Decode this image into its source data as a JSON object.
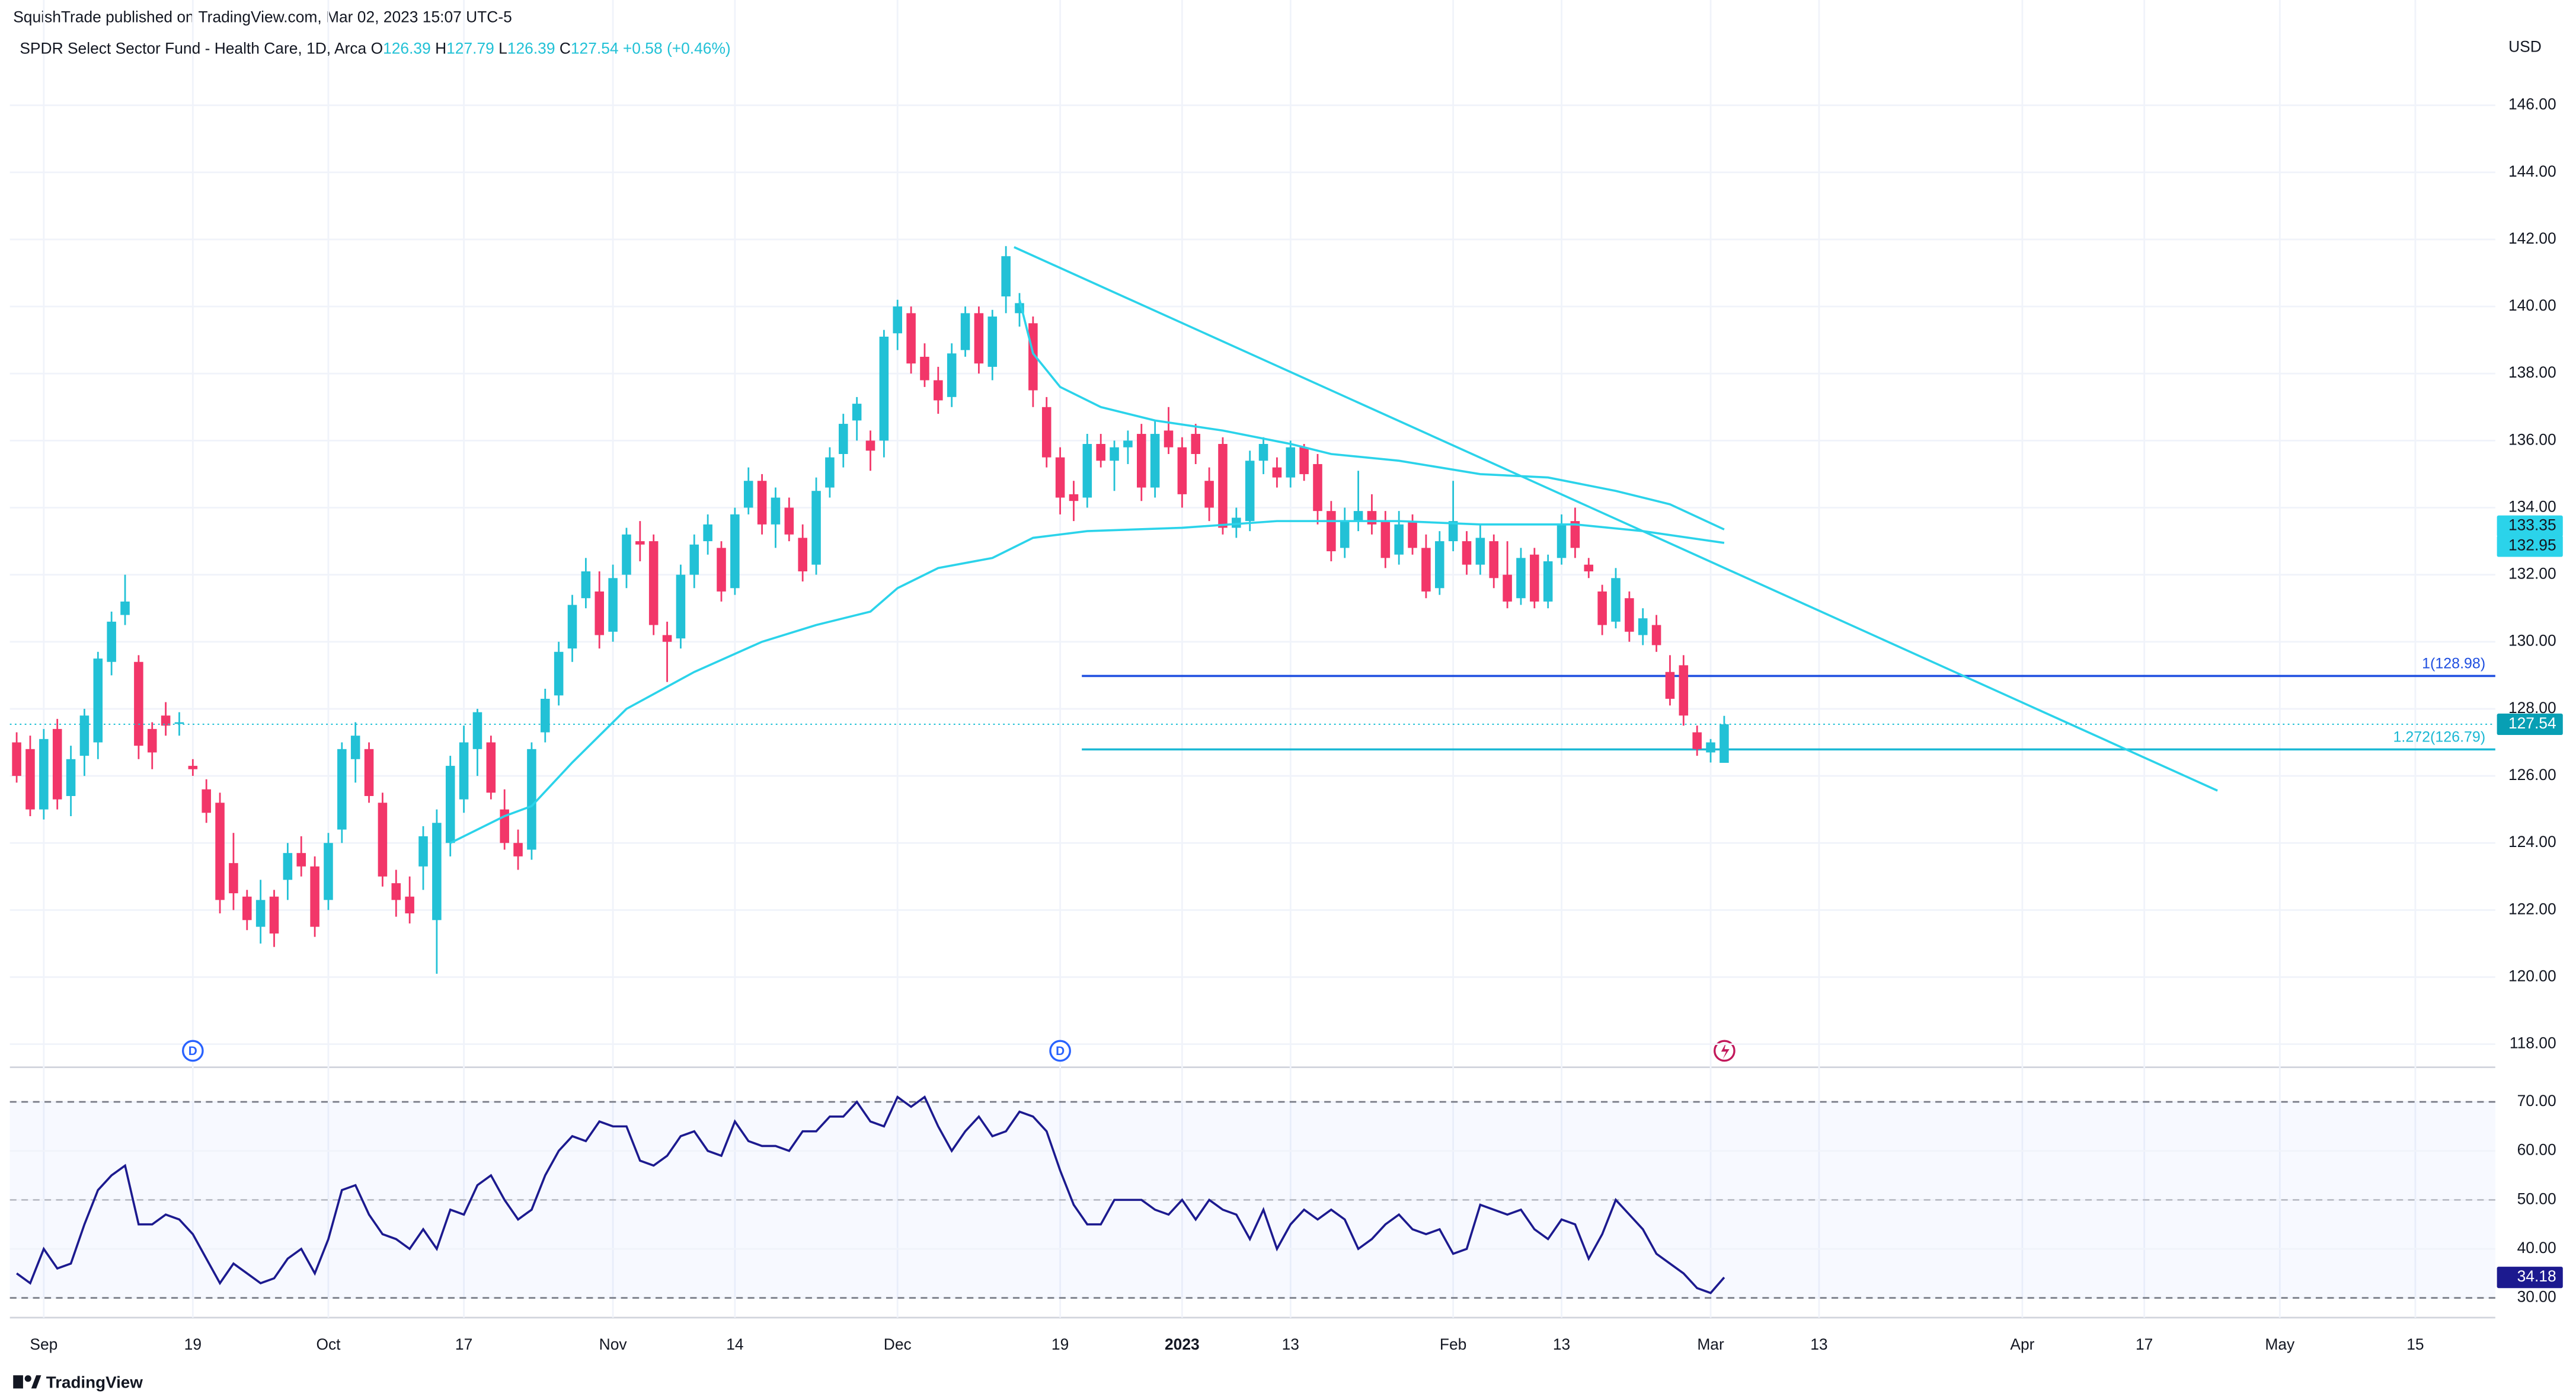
{
  "header": {
    "publisher": "SquishTrade published on TradingView.com, Mar 02, 2023 15:07 UTC-5",
    "brand": "TradingView"
  },
  "chart_data": {
    "type": "candlestick",
    "title": "SPDR Select Sector Fund - Health Care, 1D, Arca",
    "ohlc_labels": [
      "O",
      "H",
      "L",
      "C"
    ],
    "change": "+0.58 (+0.46%)",
    "currency": "USD",
    "up_color": "#22c1d6",
    "down_color": "#f23669",
    "grid": true,
    "candles": [
      [
        127.0,
        127.3,
        125.8,
        126.0
      ],
      [
        126.8,
        127.2,
        124.8,
        125.0
      ],
      [
        125.0,
        127.4,
        124.7,
        127.1
      ],
      [
        127.4,
        127.7,
        125.0,
        125.3
      ],
      [
        125.4,
        126.9,
        124.8,
        126.5
      ],
      [
        126.6,
        128.0,
        126.0,
        127.8
      ],
      [
        127.0,
        129.7,
        126.5,
        129.5
      ],
      [
        129.4,
        130.9,
        129.0,
        130.6
      ],
      [
        130.8,
        132.0,
        130.5,
        131.2
      ],
      [
        129.4,
        129.6,
        126.5,
        126.9
      ],
      [
        127.4,
        127.6,
        126.2,
        126.7
      ],
      [
        127.8,
        128.2,
        127.2,
        127.5
      ],
      [
        127.6,
        127.9,
        127.2,
        127.6
      ],
      [
        126.3,
        126.5,
        126.0,
        126.2
      ],
      [
        125.6,
        125.9,
        124.6,
        124.9
      ],
      [
        125.2,
        125.5,
        121.9,
        122.3
      ],
      [
        123.4,
        124.3,
        122.0,
        122.5
      ],
      [
        122.4,
        122.6,
        121.4,
        121.7
      ],
      [
        121.5,
        122.9,
        121.0,
        122.3
      ],
      [
        122.4,
        122.6,
        120.9,
        121.3
      ],
      [
        122.9,
        124.0,
        122.3,
        123.7
      ],
      [
        123.7,
        124.2,
        123.0,
        123.3
      ],
      [
        123.3,
        123.6,
        121.2,
        121.5
      ],
      [
        122.3,
        124.3,
        122.0,
        124.0
      ],
      [
        124.4,
        127.0,
        124.0,
        126.8
      ],
      [
        126.5,
        127.6,
        125.8,
        127.2
      ],
      [
        126.8,
        127.0,
        125.2,
        125.4
      ],
      [
        125.2,
        125.5,
        122.7,
        123.0
      ],
      [
        122.8,
        123.2,
        121.8,
        122.3
      ],
      [
        122.4,
        123.0,
        121.6,
        121.9
      ],
      [
        123.3,
        124.5,
        122.6,
        124.2
      ],
      [
        121.7,
        125.0,
        120.1,
        124.6
      ],
      [
        124.0,
        126.6,
        123.6,
        126.3
      ],
      [
        125.3,
        127.5,
        124.9,
        127.0
      ],
      [
        126.8,
        128.0,
        126.0,
        127.9
      ],
      [
        127.0,
        127.2,
        125.3,
        125.5
      ],
      [
        125.0,
        125.6,
        123.8,
        124.0
      ],
      [
        124.0,
        124.4,
        123.2,
        123.6
      ],
      [
        123.8,
        127.0,
        123.5,
        126.8
      ],
      [
        127.3,
        128.6,
        127.0,
        128.3
      ],
      [
        128.4,
        130.0,
        128.1,
        129.7
      ],
      [
        129.8,
        131.4,
        129.4,
        131.1
      ],
      [
        131.3,
        132.5,
        131.0,
        132.1
      ],
      [
        131.5,
        132.1,
        129.8,
        130.2
      ],
      [
        130.3,
        132.3,
        130.0,
        131.9
      ],
      [
        132.0,
        133.4,
        131.6,
        133.2
      ],
      [
        133.0,
        133.6,
        132.4,
        132.9
      ],
      [
        133.0,
        133.2,
        130.2,
        130.5
      ],
      [
        130.2,
        130.6,
        128.8,
        130.0
      ],
      [
        130.1,
        132.3,
        129.8,
        132.0
      ],
      [
        132.0,
        133.2,
        131.6,
        132.9
      ],
      [
        133.0,
        133.8,
        132.6,
        133.5
      ],
      [
        132.8,
        133.0,
        131.2,
        131.5
      ],
      [
        131.6,
        134.0,
        131.4,
        133.8
      ],
      [
        134.0,
        135.2,
        133.8,
        134.8
      ],
      [
        134.8,
        135.0,
        133.2,
        133.5
      ],
      [
        133.5,
        134.6,
        132.8,
        134.3
      ],
      [
        134.0,
        134.3,
        133.0,
        133.2
      ],
      [
        133.1,
        133.5,
        131.8,
        132.1
      ],
      [
        132.3,
        134.9,
        132.0,
        134.5
      ],
      [
        134.6,
        135.8,
        134.3,
        135.5
      ],
      [
        135.6,
        136.8,
        135.2,
        136.5
      ],
      [
        136.6,
        137.3,
        136.0,
        137.1
      ],
      [
        136.0,
        136.3,
        135.1,
        135.7
      ],
      [
        136.0,
        139.3,
        135.5,
        139.1
      ],
      [
        139.2,
        140.2,
        138.7,
        140.0
      ],
      [
        139.8,
        140.0,
        138.0,
        138.3
      ],
      [
        138.5,
        138.9,
        137.6,
        137.8
      ],
      [
        137.8,
        138.2,
        136.8,
        137.2
      ],
      [
        137.3,
        138.9,
        137.0,
        138.6
      ],
      [
        138.7,
        140.0,
        138.5,
        139.8
      ],
      [
        139.8,
        140.0,
        138.0,
        138.3
      ],
      [
        138.2,
        139.9,
        137.8,
        139.7
      ],
      [
        140.3,
        141.8,
        139.8,
        141.5
      ],
      [
        139.8,
        140.4,
        139.4,
        140.1
      ],
      [
        139.5,
        139.7,
        137.0,
        137.5
      ],
      [
        137.0,
        137.3,
        135.2,
        135.5
      ],
      [
        135.5,
        135.8,
        133.8,
        134.3
      ],
      [
        134.4,
        134.8,
        133.6,
        134.2
      ],
      [
        134.3,
        136.2,
        134.0,
        135.9
      ],
      [
        135.9,
        136.2,
        135.2,
        135.4
      ],
      [
        135.4,
        136.0,
        134.5,
        135.8
      ],
      [
        135.8,
        136.3,
        135.3,
        136.0
      ],
      [
        136.2,
        136.5,
        134.2,
        134.6
      ],
      [
        134.6,
        136.6,
        134.3,
        136.2
      ],
      [
        136.3,
        137.0,
        135.6,
        135.8
      ],
      [
        135.8,
        136.1,
        134.0,
        134.4
      ],
      [
        136.2,
        136.5,
        135.3,
        135.6
      ],
      [
        134.8,
        135.2,
        133.6,
        134.0
      ],
      [
        135.9,
        136.1,
        133.2,
        133.4
      ],
      [
        133.4,
        134.0,
        133.1,
        133.7
      ],
      [
        133.6,
        135.7,
        133.3,
        135.4
      ],
      [
        135.4,
        136.1,
        135.0,
        135.9
      ],
      [
        135.2,
        135.5,
        134.6,
        134.9
      ],
      [
        134.9,
        136.0,
        134.6,
        135.8
      ],
      [
        135.8,
        135.9,
        134.8,
        135.0
      ],
      [
        135.3,
        135.6,
        133.5,
        133.9
      ],
      [
        133.9,
        134.2,
        132.4,
        132.7
      ],
      [
        132.8,
        134.0,
        132.5,
        133.6
      ],
      [
        133.6,
        135.1,
        133.3,
        133.9
      ],
      [
        133.9,
        134.4,
        133.2,
        133.5
      ],
      [
        133.6,
        133.9,
        132.2,
        132.5
      ],
      [
        132.6,
        133.9,
        132.3,
        133.5
      ],
      [
        133.6,
        133.8,
        132.6,
        132.8
      ],
      [
        132.8,
        133.2,
        131.3,
        131.5
      ],
      [
        131.6,
        133.3,
        131.4,
        133.0
      ],
      [
        133.0,
        134.8,
        132.7,
        133.6
      ],
      [
        133.0,
        133.3,
        132.0,
        132.3
      ],
      [
        132.3,
        133.5,
        132.0,
        133.1
      ],
      [
        133.0,
        133.2,
        131.6,
        131.9
      ],
      [
        132.0,
        133.0,
        131.0,
        131.2
      ],
      [
        131.3,
        132.8,
        131.1,
        132.5
      ],
      [
        132.6,
        132.8,
        131.0,
        131.2
      ],
      [
        131.2,
        132.6,
        131.0,
        132.4
      ],
      [
        132.5,
        133.8,
        132.3,
        133.5
      ],
      [
        133.6,
        134.0,
        132.5,
        132.8
      ],
      [
        132.3,
        132.5,
        131.9,
        132.1
      ],
      [
        131.5,
        131.7,
        130.2,
        130.5
      ],
      [
        130.6,
        132.2,
        130.4,
        131.9
      ],
      [
        131.3,
        131.5,
        130.0,
        130.3
      ],
      [
        130.2,
        131.0,
        129.9,
        130.7
      ],
      [
        130.5,
        130.8,
        129.7,
        129.9
      ],
      [
        129.1,
        129.6,
        128.1,
        128.3
      ],
      [
        129.3,
        129.6,
        127.5,
        127.8
      ],
      [
        127.3,
        127.5,
        126.6,
        126.8
      ],
      [
        126.7,
        127.1,
        126.4,
        127.0
      ],
      [
        126.39,
        127.79,
        126.39,
        127.54
      ]
    ],
    "xlim": [
      -0.5,
      182.9
    ],
    "xticks": [
      {
        "value": 2,
        "label": "Sep"
      },
      {
        "value": 13,
        "label": "19"
      },
      {
        "value": 23,
        "label": "Oct"
      },
      {
        "value": 33,
        "label": "17"
      },
      {
        "value": 44,
        "label": "Nov"
      },
      {
        "value": 53,
        "label": "14"
      },
      {
        "value": 65,
        "label": "Dec"
      },
      {
        "value": 77,
        "label": "19"
      },
      {
        "value": 86,
        "label": "2023"
      },
      {
        "value": 94,
        "label": "13"
      },
      {
        "value": 106,
        "label": "Feb"
      },
      {
        "value": 114,
        "label": "13"
      },
      {
        "value": 125,
        "label": "Mar"
      },
      {
        "value": 133,
        "label": "13"
      },
      {
        "value": 148,
        "label": "Apr"
      },
      {
        "value": 157,
        "label": "17"
      },
      {
        "value": 167,
        "label": "May"
      },
      {
        "value": 177,
        "label": "15"
      }
    ],
    "ylim": [
      117.31,
      149.14
    ],
    "yticks": [
      {
        "value": 118,
        "label": "118.00"
      },
      {
        "value": 120,
        "label": "120.00"
      },
      {
        "value": 122,
        "label": "122.00"
      },
      {
        "value": 124,
        "label": "124.00"
      },
      {
        "value": 126,
        "label": "126.00"
      },
      {
        "value": 128,
        "label": "128.00"
      },
      {
        "value": 130,
        "label": "130.00"
      },
      {
        "value": 132,
        "label": "132.00"
      },
      {
        "value": 134,
        "label": "134.00"
      },
      {
        "value": 136,
        "label": "136.00"
      },
      {
        "value": 138,
        "label": "138.00"
      },
      {
        "value": 140,
        "label": "140.00"
      },
      {
        "value": 142,
        "label": "142.00"
      },
      {
        "value": 144,
        "label": "144.00"
      },
      {
        "value": 146,
        "label": "146.00"
      }
    ],
    "series": [
      {
        "color": "#2bd3ea",
        "x": [
          74,
          75,
          77,
          80,
          84,
          89,
          94,
          97,
          102,
          108,
          113,
          118,
          122,
          126
        ],
        "values": [
          140.2,
          138.6,
          137.6,
          137.0,
          136.6,
          136.3,
          135.9,
          135.6,
          135.4,
          135.0,
          134.9,
          134.5,
          134.1,
          133.35
        ]
      },
      {
        "color": "#2bd3ea",
        "x": [
          32,
          36,
          38,
          41,
          45,
          50,
          55,
          59,
          63,
          65,
          68,
          72,
          75,
          79,
          86,
          93,
          102,
          108,
          115,
          120,
          126
        ],
        "values": [
          124.0,
          124.8,
          125.1,
          126.4,
          128.0,
          129.1,
          130.0,
          130.5,
          130.9,
          131.6,
          132.2,
          132.5,
          133.1,
          133.3,
          133.4,
          133.6,
          133.6,
          133.5,
          133.5,
          133.3,
          132.95
        ]
      }
    ],
    "trendline": {
      "color": "#2bd3ea",
      "x": [
        73.6,
        162.4
      ],
      "y": [
        141.77,
        125.56
      ]
    },
    "levels": [
      {
        "value": 128.98,
        "label": "1(128.98)",
        "color": "#1f4fe0",
        "x_start": 78.6
      },
      {
        "value": 126.79,
        "label": "1.272(126.79)",
        "color": "#1bb8d4",
        "x_start": 78.6
      }
    ],
    "events": [
      {
        "x": 13,
        "label": "D"
      },
      {
        "x": 77,
        "label": "D"
      }
    ],
    "rsi": {
      "color": "#1c1a8f",
      "values": [
        35,
        33,
        40,
        36,
        37,
        45,
        52,
        55,
        57,
        45,
        45,
        47,
        46,
        43,
        38,
        33,
        37,
        35,
        33,
        34,
        38,
        40,
        35,
        42,
        52,
        53,
        47,
        43,
        42,
        40,
        44,
        40,
        48,
        47,
        53,
        55,
        50,
        46,
        48,
        55,
        60,
        63,
        62,
        66,
        65,
        65,
        58,
        57,
        59,
        63,
        64,
        60,
        59,
        66,
        62,
        61,
        61,
        60,
        64,
        64,
        67,
        67,
        70,
        66,
        65,
        71,
        69,
        71,
        65,
        60,
        64,
        67,
        63,
        64,
        68,
        67,
        64,
        56,
        49,
        45,
        45,
        50,
        50,
        50,
        48,
        47,
        50,
        46,
        50,
        48,
        47,
        42,
        48,
        40,
        45,
        48,
        46,
        48,
        46,
        40,
        42,
        45,
        47,
        44,
        43,
        44,
        39,
        40,
        49,
        48,
        47,
        48,
        44,
        42,
        46,
        45,
        38,
        43,
        50,
        47,
        44,
        39,
        37,
        35,
        32,
        31,
        34.18
      ],
      "ylim": [
        25.97,
        77.06
      ],
      "yticks": [
        {
          "value": 30,
          "label": "30.00"
        },
        {
          "value": 40,
          "label": "40.00"
        },
        {
          "value": 50,
          "label": "50.00"
        },
        {
          "value": 60,
          "label": "60.00"
        },
        {
          "value": 70,
          "label": "70.00"
        }
      ],
      "guides": [
        70,
        50,
        30
      ]
    }
  }
}
